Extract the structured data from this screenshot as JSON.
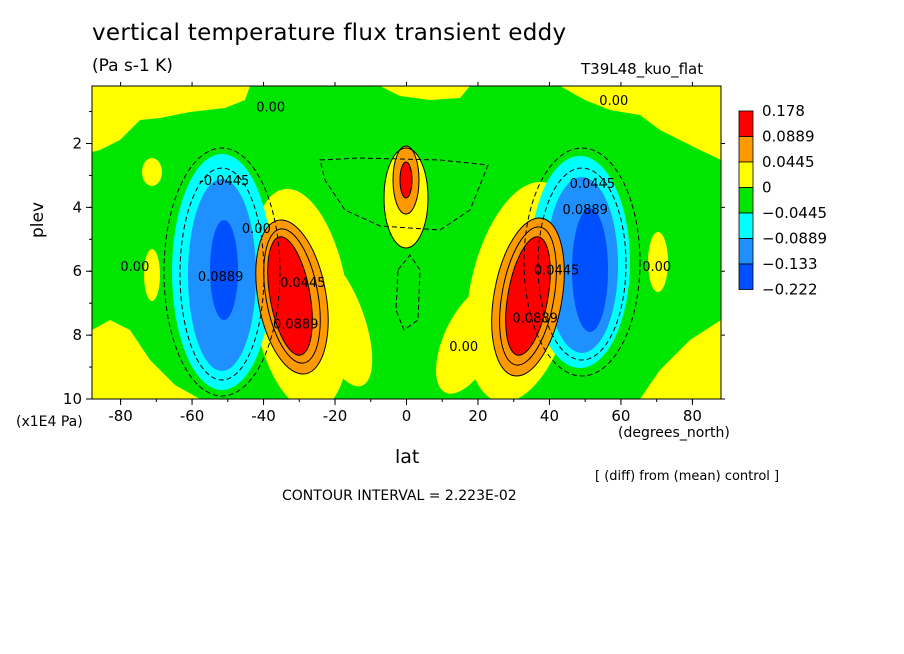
{
  "colors": {
    "red": "#ff0000",
    "orange": "#ff9900",
    "yellow": "#ffff00",
    "green": "#00e600",
    "cyan": "#00ffff",
    "lightblue": "#1e90ff",
    "blue": "#0050ff"
  },
  "chart_data": {
    "type": "heatmap",
    "title": "vertical temperature flux transient eddy",
    "units": "(Pa s-1 K)",
    "run_name": "T39L48_kuo_flat",
    "xlabel": "lat",
    "x_units": "(degrees_north)",
    "ylabel": "plev",
    "y_units": "(x1E4 Pa)",
    "xlim": [
      -88,
      88
    ],
    "ylim": [
      10,
      0.2
    ],
    "x_ticks": [
      "-80",
      "-60",
      "-40",
      "-20",
      "0",
      "20",
      "40",
      "60",
      "80"
    ],
    "y_ticks": [
      "2",
      "4",
      "6",
      "8",
      "10"
    ],
    "colorbar_labels": [
      "0.178",
      "0.0889",
      "0.0445",
      "0",
      "−0.0445",
      "−0.0889",
      "−0.133",
      "−0.222"
    ],
    "contour_interval_text": "CONTOUR INTERVAL = 2.223E-02",
    "comparison_note": "[ (diff) from (mean) control ]",
    "contour_labels": [
      {
        "text": "0.00",
        "lat": -38,
        "plev": 1.0
      },
      {
        "text": "0.00",
        "lat": 58,
        "plev": 0.8
      },
      {
        "text": "-0.0445",
        "lat": -51,
        "plev": 3.3
      },
      {
        "text": "0.0445",
        "lat": 52,
        "plev": 3.4
      },
      {
        "text": "0.0889",
        "lat": 50,
        "plev": 4.2
      },
      {
        "text": "0.00",
        "lat": -76,
        "plev": 6.0
      },
      {
        "text": "0.00",
        "lat": 70,
        "plev": 6.0
      },
      {
        "text": "0.0889",
        "lat": -52,
        "plev": 6.3
      },
      {
        "text": "0.00",
        "lat": -42,
        "plev": 4.8
      },
      {
        "text": "0.0445",
        "lat": -29,
        "plev": 6.5
      },
      {
        "text": "0.0889",
        "lat": -31,
        "plev": 7.8
      },
      {
        "text": "0.0889",
        "lat": 36,
        "plev": 7.6
      },
      {
        "text": "0.0445",
        "lat": 42,
        "plev": 6.1
      },
      {
        "text": "0.00",
        "lat": 16,
        "plev": 8.5
      }
    ]
  }
}
